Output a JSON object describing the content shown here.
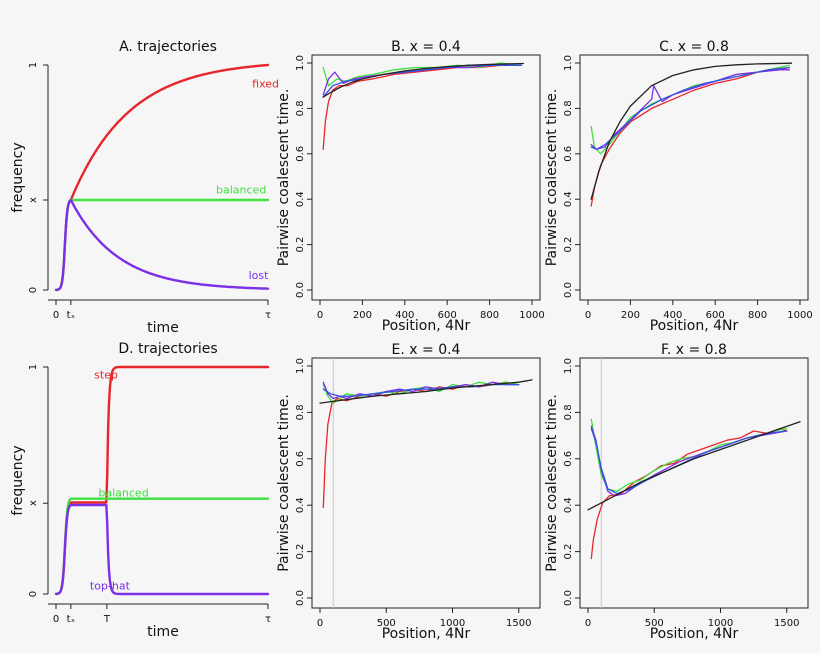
{
  "colors": {
    "red": "#e8252a",
    "green": "#3fe03f",
    "purple": "#7d2ee8",
    "blue": "#3355dd",
    "black": "#222222"
  },
  "chart_data": [
    {
      "id": "A",
      "type": "line",
      "title": "A. trajectories",
      "xlabel": "time",
      "ylabel": "frequency",
      "xticks": [
        "0",
        "tₓ",
        "τ"
      ],
      "yticks": [
        "0",
        "x",
        "1"
      ],
      "xlim": [
        0,
        1
      ],
      "ylim": [
        0,
        1
      ],
      "x_level": 0.4,
      "tx": 0.07,
      "series": [
        {
          "name": "fixed",
          "color": "red",
          "shape": "sweep_up"
        },
        {
          "name": "balanced",
          "color": "green",
          "shape": "flat"
        },
        {
          "name": "lost",
          "color": "purple",
          "shape": "sweep_down"
        }
      ]
    },
    {
      "id": "B",
      "type": "line",
      "title": "B.  x =  0.4",
      "xlabel": "Position, 4Nr",
      "ylabel": "Pairwise coalescent time.",
      "xlim": [
        0,
        1000
      ],
      "ylim": [
        0,
        1
      ],
      "xticks": [
        0,
        200,
        400,
        600,
        800,
        1000
      ],
      "yticks": [
        "0.0",
        "0.2",
        "0.4",
        "0.6",
        "0.8",
        "1.0"
      ],
      "series": [
        {
          "color": "black",
          "x": [
            15,
            50,
            100,
            150,
            200,
            300,
            400,
            500,
            600,
            700,
            800,
            960
          ],
          "y": [
            0.85,
            0.87,
            0.895,
            0.915,
            0.93,
            0.95,
            0.965,
            0.976,
            0.984,
            0.99,
            0.994,
            0.998
          ]
        },
        {
          "color": "red",
          "x": [
            15,
            25,
            40,
            60,
            90,
            130,
            180,
            250,
            350,
            450,
            550,
            650,
            750,
            850,
            950
          ],
          "y": [
            0.62,
            0.74,
            0.83,
            0.88,
            0.9,
            0.9,
            0.92,
            0.93,
            0.95,
            0.96,
            0.97,
            0.98,
            0.98,
            0.99,
            0.99
          ]
        },
        {
          "color": "green",
          "x": [
            15,
            40,
            80,
            120,
            180,
            250,
            350,
            450,
            550,
            650,
            750,
            850,
            950
          ],
          "y": [
            0.98,
            0.9,
            0.93,
            0.92,
            0.94,
            0.95,
            0.97,
            0.98,
            0.98,
            0.99,
            0.98,
            1.0,
            0.99
          ]
        },
        {
          "color": "purple",
          "x": [
            15,
            40,
            70,
            110,
            160,
            220,
            300,
            400,
            500,
            600,
            700,
            800,
            900,
            950
          ],
          "y": [
            0.86,
            0.93,
            0.96,
            0.91,
            0.93,
            0.94,
            0.95,
            0.96,
            0.97,
            0.98,
            0.98,
            0.99,
            0.99,
            0.99
          ]
        },
        {
          "color": "blue",
          "x": [
            15,
            60,
            120,
            200,
            300,
            400,
            500,
            600,
            700,
            800,
            900,
            950
          ],
          "y": [
            0.85,
            0.9,
            0.92,
            0.93,
            0.95,
            0.96,
            0.97,
            0.98,
            0.99,
            0.99,
            0.99,
            0.99
          ]
        }
      ]
    },
    {
      "id": "C",
      "type": "line",
      "title": "C.  x =  0.8",
      "xlabel": "Position, 4Nr",
      "ylabel": "Pairwise coalescent time.",
      "xlim": [
        0,
        1000
      ],
      "ylim": [
        0,
        1
      ],
      "xticks": [
        0,
        200,
        400,
        600,
        800,
        1000
      ],
      "yticks": [
        "0.0",
        "0.2",
        "0.4",
        "0.6",
        "0.8",
        "1.0"
      ],
      "series": [
        {
          "color": "black",
          "x": [
            15,
            50,
            100,
            150,
            200,
            300,
            400,
            500,
            600,
            700,
            800,
            960
          ],
          "y": [
            0.4,
            0.52,
            0.65,
            0.74,
            0.81,
            0.9,
            0.945,
            0.97,
            0.985,
            0.992,
            0.996,
            0.999
          ]
        },
        {
          "color": "red",
          "x": [
            15,
            30,
            60,
            100,
            150,
            200,
            300,
            400,
            500,
            600,
            700,
            800,
            900,
            950
          ],
          "y": [
            0.37,
            0.45,
            0.55,
            0.62,
            0.69,
            0.74,
            0.8,
            0.84,
            0.88,
            0.91,
            0.93,
            0.96,
            0.97,
            0.98
          ]
        },
        {
          "color": "green",
          "x": [
            15,
            30,
            60,
            100,
            150,
            200,
            300,
            400,
            500,
            600,
            700,
            800,
            900,
            950
          ],
          "y": [
            0.72,
            0.63,
            0.6,
            0.64,
            0.7,
            0.76,
            0.82,
            0.86,
            0.9,
            0.92,
            0.95,
            0.96,
            0.98,
            0.99
          ]
        },
        {
          "color": "purple",
          "x": [
            15,
            40,
            80,
            120,
            200,
            300,
            310,
            350,
            400,
            500,
            600,
            700,
            800,
            900,
            950
          ],
          "y": [
            0.64,
            0.62,
            0.63,
            0.68,
            0.75,
            0.84,
            0.9,
            0.83,
            0.86,
            0.89,
            0.92,
            0.95,
            0.96,
            0.97,
            0.97
          ]
        },
        {
          "color": "blue",
          "x": [
            15,
            40,
            80,
            150,
            250,
            350,
            450,
            550,
            650,
            750,
            850,
            950
          ],
          "y": [
            0.63,
            0.62,
            0.64,
            0.7,
            0.79,
            0.84,
            0.88,
            0.91,
            0.93,
            0.95,
            0.97,
            0.98
          ]
        }
      ]
    },
    {
      "id": "D",
      "type": "line",
      "title": "D. trajectories",
      "xlabel": "time",
      "ylabel": "frequency",
      "xticks": [
        "0",
        "tₓ",
        "T",
        "τ"
      ],
      "yticks": [
        "0",
        "x",
        "1"
      ],
      "xlim": [
        0,
        1
      ],
      "ylim": [
        0,
        1
      ],
      "x_level": 0.4,
      "tx": 0.07,
      "T": 0.24,
      "series": [
        {
          "name": "step",
          "color": "red",
          "shape": "step"
        },
        {
          "name": "balanced",
          "color": "green",
          "shape": "plateau"
        },
        {
          "name": "top-hat",
          "color": "purple",
          "shape": "tophat"
        }
      ]
    },
    {
      "id": "E",
      "type": "line",
      "title": "E.  x =  0.4",
      "xlabel": "Position, 4Nr",
      "ylabel": "Pairwise coalescent time.",
      "xlim": [
        0,
        1600
      ],
      "ylim": [
        0,
        1
      ],
      "vline": 100,
      "xticks": [
        0,
        500,
        1000,
        1500
      ],
      "yticks": [
        "0.0",
        "0.2",
        "0.4",
        "0.6",
        "0.8",
        "1.0"
      ],
      "series": [
        {
          "color": "black",
          "x": [
            0,
            200,
            400,
            600,
            800,
            1000,
            1200,
            1400,
            1500,
            1600
          ],
          "y": [
            0.84,
            0.855,
            0.87,
            0.88,
            0.89,
            0.905,
            0.915,
            0.925,
            0.93,
            0.94
          ]
        },
        {
          "color": "red",
          "x": [
            25,
            40,
            60,
            90,
            130,
            200,
            300,
            400,
            500,
            600,
            700,
            800,
            900,
            1000,
            1100,
            1200,
            1300,
            1400,
            1500
          ],
          "y": [
            0.39,
            0.6,
            0.75,
            0.84,
            0.86,
            0.85,
            0.87,
            0.88,
            0.87,
            0.89,
            0.9,
            0.89,
            0.91,
            0.9,
            0.92,
            0.91,
            0.92,
            0.93,
            0.92
          ]
        },
        {
          "color": "green",
          "x": [
            25,
            60,
            100,
            150,
            200,
            300,
            400,
            500,
            600,
            700,
            800,
            900,
            1000,
            1100,
            1200,
            1300,
            1400,
            1500
          ],
          "y": [
            0.92,
            0.87,
            0.84,
            0.86,
            0.88,
            0.87,
            0.88,
            0.89,
            0.88,
            0.9,
            0.91,
            0.89,
            0.92,
            0.91,
            0.93,
            0.92,
            0.93,
            0.92
          ]
        },
        {
          "color": "purple",
          "x": [
            25,
            60,
            100,
            150,
            200,
            300,
            400,
            500,
            600,
            700,
            800,
            900,
            1000,
            1100,
            1200,
            1300,
            1400,
            1500
          ],
          "y": [
            0.93,
            0.88,
            0.86,
            0.87,
            0.86,
            0.88,
            0.87,
            0.89,
            0.9,
            0.89,
            0.91,
            0.9,
            0.91,
            0.92,
            0.91,
            0.93,
            0.92,
            0.92
          ]
        },
        {
          "color": "blue",
          "x": [
            25,
            80,
            150,
            250,
            400,
            550,
            700,
            850,
            1000,
            1150,
            1300,
            1450,
            1500
          ],
          "y": [
            0.9,
            0.88,
            0.87,
            0.87,
            0.88,
            0.89,
            0.9,
            0.9,
            0.91,
            0.91,
            0.92,
            0.92,
            0.92
          ]
        }
      ]
    },
    {
      "id": "F",
      "type": "line",
      "title": "F.  x =  0.8",
      "xlabel": "Position, 4Nr",
      "ylabel": "Pairwise coalescent time.",
      "xlim": [
        0,
        1600
      ],
      "ylim": [
        0,
        1
      ],
      "vline": 100,
      "xticks": [
        0,
        500,
        1000,
        1500
      ],
      "yticks": [
        "0.0",
        "0.2",
        "0.4",
        "0.6",
        "0.8",
        "1.0"
      ],
      "series": [
        {
          "color": "black",
          "x": [
            0,
            100,
            200,
            400,
            600,
            800,
            1000,
            1200,
            1400,
            1600
          ],
          "y": [
            0.38,
            0.41,
            0.44,
            0.5,
            0.55,
            0.6,
            0.64,
            0.68,
            0.72,
            0.76
          ]
        },
        {
          "color": "red",
          "x": [
            25,
            40,
            70,
            110,
            160,
            250,
            350,
            450,
            550,
            650,
            750,
            850,
            950,
            1050,
            1150,
            1250,
            1350,
            1450,
            1500
          ],
          "y": [
            0.17,
            0.25,
            0.34,
            0.41,
            0.44,
            0.45,
            0.5,
            0.53,
            0.57,
            0.58,
            0.62,
            0.64,
            0.66,
            0.68,
            0.69,
            0.72,
            0.71,
            0.73,
            0.72
          ]
        },
        {
          "color": "green",
          "x": [
            25,
            40,
            70,
            100,
            150,
            220,
            300,
            400,
            500,
            600,
            700,
            800,
            900,
            1000,
            1100,
            1200,
            1300,
            1400,
            1500
          ],
          "y": [
            0.77,
            0.72,
            0.62,
            0.53,
            0.47,
            0.46,
            0.49,
            0.51,
            0.55,
            0.58,
            0.6,
            0.61,
            0.63,
            0.66,
            0.67,
            0.69,
            0.7,
            0.72,
            0.73
          ]
        },
        {
          "color": "purple",
          "x": [
            25,
            60,
            100,
            150,
            200,
            280,
            380,
            500,
            600,
            700,
            800,
            900,
            1000,
            1100,
            1200,
            1300,
            1400,
            1500
          ],
          "y": [
            0.74,
            0.68,
            0.55,
            0.46,
            0.44,
            0.45,
            0.49,
            0.53,
            0.56,
            0.59,
            0.61,
            0.63,
            0.65,
            0.67,
            0.69,
            0.7,
            0.71,
            0.72
          ]
        },
        {
          "color": "blue",
          "x": [
            25,
            60,
            100,
            150,
            220,
            320,
            450,
            600,
            750,
            900,
            1050,
            1200,
            1350,
            1500
          ],
          "y": [
            0.73,
            0.67,
            0.56,
            0.47,
            0.45,
            0.47,
            0.51,
            0.55,
            0.59,
            0.63,
            0.66,
            0.69,
            0.71,
            0.72
          ]
        }
      ]
    }
  ]
}
